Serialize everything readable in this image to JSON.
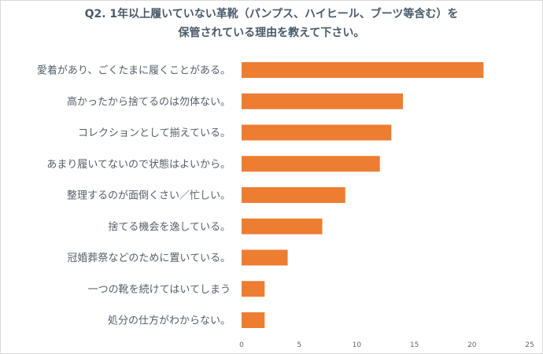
{
  "chart_data": {
    "type": "bar",
    "orientation": "horizontal",
    "title_line1": "Q2. 1年以上履いていない革靴（パンプス、ハイヒール、ブーツ等含む）を",
    "title_line2": "保管されている理由を教えて下さい。",
    "categories": [
      "愛着があり、ごくたまに履くことがある。",
      "高かったから捨てるのは勿体ない。",
      "コレクションとして揃えている。",
      "あまり履いてないので状態はよいから。",
      "整理するのが面倒くさい／忙しい。",
      "捨てる機会を逸している。",
      "冠婚葬祭などのために置いている。",
      "一つの靴を続けてはいてしまう",
      "処分の仕方がわからない。"
    ],
    "values": [
      21,
      14,
      13,
      12,
      9,
      7,
      4,
      2,
      2
    ],
    "xlim": [
      0,
      25
    ],
    "xticks": [
      "0",
      "5",
      "10",
      "15",
      "20",
      "25"
    ],
    "bar_color": "#ed7d31",
    "grid": false,
    "legend": "none"
  }
}
